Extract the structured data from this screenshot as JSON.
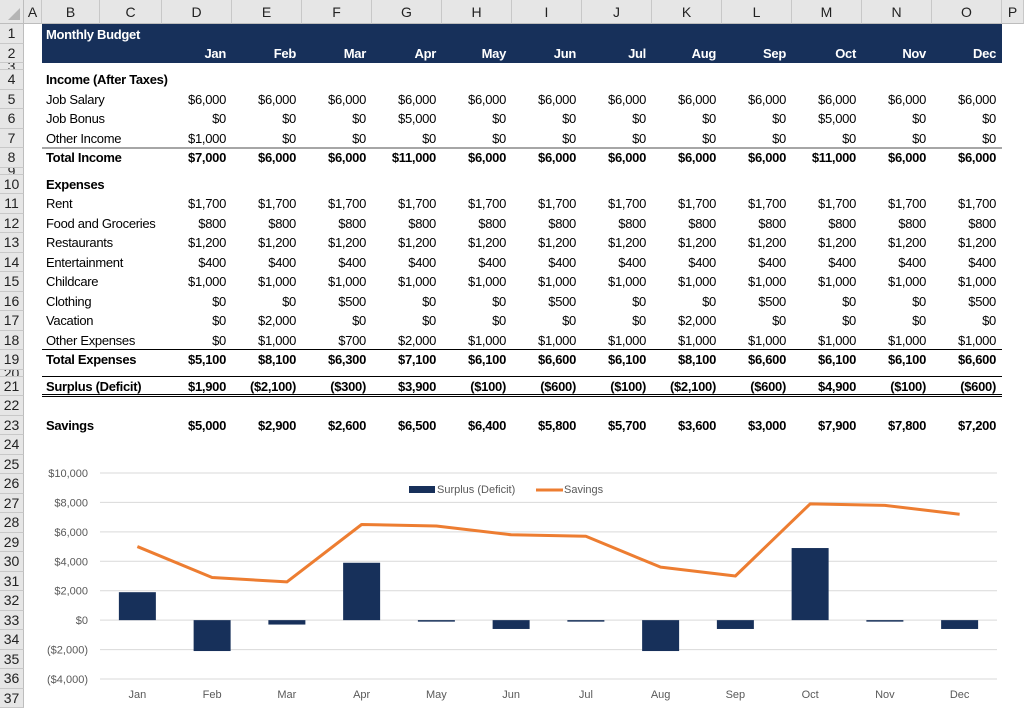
{
  "columns": [
    "A",
    "B",
    "C",
    "D",
    "E",
    "F",
    "G",
    "H",
    "I",
    "J",
    "K",
    "L",
    "M",
    "N",
    "O",
    "P"
  ],
  "row_numbers": [
    "1",
    "2",
    "3",
    "4",
    "5",
    "6",
    "7",
    "8",
    "9",
    "10",
    "11",
    "12",
    "13",
    "14",
    "15",
    "16",
    "17",
    "18",
    "19",
    "20",
    "21",
    "22",
    "23",
    "24",
    "25",
    "26",
    "27",
    "28",
    "29",
    "30",
    "31",
    "32",
    "33",
    "34",
    "35",
    "36",
    "37"
  ],
  "title": "Monthly Budget",
  "months": [
    "Jan",
    "Feb",
    "Mar",
    "Apr",
    "May",
    "Jun",
    "Jul",
    "Aug",
    "Sep",
    "Oct",
    "Nov",
    "Dec"
  ],
  "rows": [
    {
      "row": 4,
      "label": "Income (After Taxes)",
      "bold": true,
      "values": []
    },
    {
      "row": 5,
      "label": "Job Salary",
      "values": [
        "$6,000",
        "$6,000",
        "$6,000",
        "$6,000",
        "$6,000",
        "$6,000",
        "$6,000",
        "$6,000",
        "$6,000",
        "$6,000",
        "$6,000",
        "$6,000"
      ]
    },
    {
      "row": 6,
      "label": "Job Bonus",
      "values": [
        "$0",
        "$0",
        "$0",
        "$5,000",
        "$0",
        "$0",
        "$0",
        "$0",
        "$0",
        "$5,000",
        "$0",
        "$0"
      ]
    },
    {
      "row": 7,
      "label": "Other Income",
      "values": [
        "$1,000",
        "$0",
        "$0",
        "$0",
        "$0",
        "$0",
        "$0",
        "$0",
        "$0",
        "$0",
        "$0",
        "$0"
      ]
    },
    {
      "row": 8,
      "label": "Total Income",
      "bold": true,
      "values": [
        "$7,000",
        "$6,000",
        "$6,000",
        "$11,000",
        "$6,000",
        "$6,000",
        "$6,000",
        "$6,000",
        "$6,000",
        "$11,000",
        "$6,000",
        "$6,000"
      ]
    },
    {
      "row": 10,
      "label": "Expenses",
      "bold": true,
      "values": []
    },
    {
      "row": 11,
      "label": "Rent",
      "values": [
        "$1,700",
        "$1,700",
        "$1,700",
        "$1,700",
        "$1,700",
        "$1,700",
        "$1,700",
        "$1,700",
        "$1,700",
        "$1,700",
        "$1,700",
        "$1,700"
      ]
    },
    {
      "row": 12,
      "label": "Food and Groceries",
      "values": [
        "$800",
        "$800",
        "$800",
        "$800",
        "$800",
        "$800",
        "$800",
        "$800",
        "$800",
        "$800",
        "$800",
        "$800"
      ]
    },
    {
      "row": 13,
      "label": "Restaurants",
      "values": [
        "$1,200",
        "$1,200",
        "$1,200",
        "$1,200",
        "$1,200",
        "$1,200",
        "$1,200",
        "$1,200",
        "$1,200",
        "$1,200",
        "$1,200",
        "$1,200"
      ]
    },
    {
      "row": 14,
      "label": "Entertainment",
      "values": [
        "$400",
        "$400",
        "$400",
        "$400",
        "$400",
        "$400",
        "$400",
        "$400",
        "$400",
        "$400",
        "$400",
        "$400"
      ]
    },
    {
      "row": 15,
      "label": "Childcare",
      "values": [
        "$1,000",
        "$1,000",
        "$1,000",
        "$1,000",
        "$1,000",
        "$1,000",
        "$1,000",
        "$1,000",
        "$1,000",
        "$1,000",
        "$1,000",
        "$1,000"
      ]
    },
    {
      "row": 16,
      "label": "Clothing",
      "values": [
        "$0",
        "$0",
        "$500",
        "$0",
        "$0",
        "$500",
        "$0",
        "$0",
        "$500",
        "$0",
        "$0",
        "$500"
      ]
    },
    {
      "row": 17,
      "label": "Vacation",
      "values": [
        "$0",
        "$2,000",
        "$0",
        "$0",
        "$0",
        "$0",
        "$0",
        "$2,000",
        "$0",
        "$0",
        "$0",
        "$0"
      ]
    },
    {
      "row": 18,
      "label": "Other Expenses",
      "values": [
        "$0",
        "$1,000",
        "$700",
        "$2,000",
        "$1,000",
        "$1,000",
        "$1,000",
        "$1,000",
        "$1,000",
        "$1,000",
        "$1,000",
        "$1,000"
      ]
    },
    {
      "row": 19,
      "label": "Total Expenses",
      "bold": true,
      "values": [
        "$5,100",
        "$8,100",
        "$6,300",
        "$7,100",
        "$6,100",
        "$6,600",
        "$6,100",
        "$8,100",
        "$6,600",
        "$6,100",
        "$6,100",
        "$6,600"
      ]
    },
    {
      "row": 21,
      "label": "Surplus (Deficit)",
      "bold": true,
      "values": [
        "$1,900",
        "($2,100)",
        "($300)",
        "$3,900",
        "($100)",
        "($600)",
        "($100)",
        "($2,100)",
        "($600)",
        "$4,900",
        "($100)",
        "($600)"
      ]
    },
    {
      "row": 23,
      "label": "Savings",
      "bold": true,
      "values": [
        "$5,000",
        "$2,900",
        "$2,600",
        "$6,500",
        "$6,400",
        "$5,800",
        "$5,700",
        "$3,600",
        "$3,000",
        "$7,900",
        "$7,800",
        "$7,200"
      ]
    }
  ],
  "colors": {
    "header_band": "#17305a",
    "bar": "#17305a",
    "line": "#ed7d31",
    "grid": "#d9d9d9"
  },
  "chart_data": {
    "type": "bar+line",
    "categories": [
      "Jan",
      "Feb",
      "Mar",
      "Apr",
      "May",
      "Jun",
      "Jul",
      "Aug",
      "Sep",
      "Oct",
      "Nov",
      "Dec"
    ],
    "series": [
      {
        "name": "Surplus (Deficit)",
        "type": "bar",
        "values": [
          1900,
          -2100,
          -300,
          3900,
          -100,
          -600,
          -100,
          -2100,
          -600,
          4900,
          -100,
          -600
        ]
      },
      {
        "name": "Savings",
        "type": "line",
        "values": [
          5000,
          2900,
          2600,
          6500,
          6400,
          5800,
          5700,
          3600,
          3000,
          7900,
          7800,
          7200
        ]
      }
    ],
    "yticks": [
      "$10,000",
      "$8,000",
      "$6,000",
      "$4,000",
      "$2,000",
      "$0",
      "($2,000)",
      "($4,000)"
    ],
    "ylim": [
      -4000,
      10000
    ],
    "grid": true,
    "legend": "top-center"
  }
}
